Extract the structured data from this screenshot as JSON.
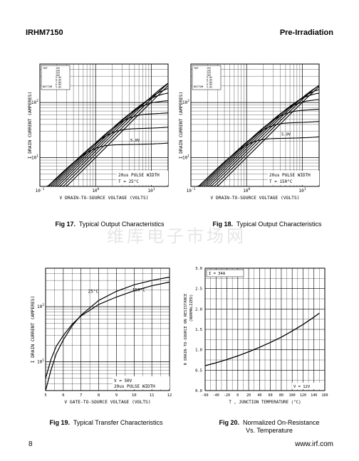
{
  "header": {
    "part": "IRHM7150",
    "section": "Pre-Irradiation"
  },
  "watermark": "维库电子市场网",
  "footer": {
    "page": "8",
    "url": "www.irf.com"
  },
  "charts": [
    {
      "id": "fig17",
      "caption_num": "Fig 17.",
      "caption_text": "Typical Output Characteristics",
      "ylabel": "I  DRAIN CURRENT (AMPERES)",
      "ysub": "D",
      "xlabel": "V   DRAIN-TO-SOURCE VOLTAGE (VOLTS)",
      "xsub": "DS,",
      "xticks": [
        "10-1",
        "100",
        "101"
      ],
      "yticks": [
        "102",
        "101"
      ],
      "legend_top": "TOP",
      "legend_bottom": "BOTTOM",
      "legend_vgs": [
        "15V",
        "14V",
        "12V",
        "10V",
        "9.0V",
        "8.0V",
        "7.0V",
        "6.0V",
        "5.0V"
      ],
      "lowest_curve_label": "5.0V",
      "note1": "20us PULSE WIDTH",
      "note2": "T  = 25°C",
      "note2_sub": "C"
    },
    {
      "id": "fig18",
      "caption_num": "Fig 18.",
      "caption_text": "Typical Output Characteristics",
      "ylabel": "I  DRAIN CURRENT (AMPERES)",
      "ysub": "D",
      "xlabel": "V   DRAIN-TO-SOURCE VOLTAGE (VOLTS)",
      "xsub": "DS,",
      "xticks": [
        "10-1",
        "100",
        "101"
      ],
      "yticks": [
        "102",
        "101"
      ],
      "legend_top": "TOP",
      "legend_bottom": "BOTTOM",
      "legend_vgs": [
        "15V",
        "14V",
        "12V",
        "10V",
        "9.0V",
        "8.0V",
        "7.0V",
        "6.0V",
        "5.0V"
      ],
      "lowest_curve_label": "5.0V",
      "note1": "20us PULSE WIDTH",
      "note2": "T  = 150°C",
      "note2_sub": "C"
    },
    {
      "id": "fig19",
      "caption_num": "Fig 19.",
      "caption_text": "Typical Transfer Characteristics",
      "ylabel": "I  DRAIN CURRENT (AMPERES)",
      "ysub": "D",
      "xlabel": "V    GATE-TO-SOURCE VOLTAGE (VOLTS)",
      "xsub": "GS,",
      "xticks": [
        "5",
        "6",
        "7",
        "8",
        "9",
        "10",
        "11",
        "12"
      ],
      "yticks": [
        "102",
        "101"
      ],
      "series_labels": [
        "25°C",
        "150°C"
      ],
      "note1": "V   = 50V",
      "note1_sub": "DS",
      "note2": "20us PULSE WIDTH"
    },
    {
      "id": "fig20",
      "caption_num": "Fig 20.",
      "caption_text": "Normalized On-Resistance",
      "caption_text2": "Vs. Temperature",
      "ylabel": "R      DRAIN-TO-SOURCE ON RESISTANCE",
      "ysub": "DS (on),",
      "ylabel2": "(NORMALIZED)",
      "xlabel": "T , JUNCTION TEMPERATURE  (°C)",
      "xticks": [
        "-60",
        "-40",
        "-20",
        "0",
        "20",
        "40",
        "60",
        "80",
        "100",
        "120",
        "140",
        "160"
      ],
      "yticks": [
        "3.0",
        "2.5",
        "2.0",
        "1.5",
        "1.0",
        "0.5",
        "0.0"
      ],
      "id_label": "I  = 34A",
      "vgs_label": "V   = 12V"
    }
  ],
  "chart_data": [
    {
      "type": "line",
      "title": "Typical Output Characteristics",
      "x_scale": "log",
      "y_scale": "log",
      "xlim": [
        0.1,
        20
      ],
      "ylim": [
        3,
        500
      ],
      "series": [
        {
          "name": "15V",
          "saturation": 420
        },
        {
          "name": "14V",
          "saturation": 380
        },
        {
          "name": "12V",
          "saturation": 290
        },
        {
          "name": "10V",
          "saturation": 180
        },
        {
          "name": "9.0V",
          "saturation": 140
        },
        {
          "name": "8.0V",
          "saturation": 100
        },
        {
          "name": "7.0V",
          "saturation": 60
        },
        {
          "name": "6.0V",
          "saturation": 33
        },
        {
          "name": "5.0V",
          "saturation": 17
        }
      ]
    },
    {
      "type": "line",
      "title": "Typical Output Characteristics",
      "x_scale": "log",
      "y_scale": "log",
      "xlim": [
        0.1,
        20
      ],
      "ylim": [
        3,
        500
      ],
      "series": [
        {
          "name": "15V",
          "saturation": 330
        },
        {
          "name": "14V",
          "saturation": 290
        },
        {
          "name": "12V",
          "saturation": 230
        },
        {
          "name": "10V",
          "saturation": 170
        },
        {
          "name": "9.0V",
          "saturation": 140
        },
        {
          "name": "8.0V",
          "saturation": 105
        },
        {
          "name": "7.0V",
          "saturation": 70
        },
        {
          "name": "6.0V",
          "saturation": 42
        },
        {
          "name": "5.0V",
          "saturation": 22
        }
      ]
    },
    {
      "type": "line",
      "title": "Typical Transfer Characteristics",
      "y_scale": "log",
      "xlim": [
        5,
        12
      ],
      "ylim": [
        3,
        500
      ],
      "series": [
        {
          "name": "25°C",
          "x": [
            5,
            5.3,
            5.6,
            6,
            6.5,
            7,
            8,
            9,
            10,
            11,
            12
          ],
          "y": [
            3,
            7,
            14,
            25,
            45,
            70,
            130,
            190,
            250,
            300,
            345
          ]
        },
        {
          "name": "150°C",
          "x": [
            5,
            5.3,
            5.6,
            6,
            6.5,
            7,
            8,
            9,
            10,
            11,
            12
          ],
          "y": [
            5,
            11,
            19,
            30,
            48,
            68,
            110,
            150,
            195,
            240,
            280
          ]
        }
      ]
    },
    {
      "type": "line",
      "title": "Normalized On-Resistance Vs. Temperature",
      "xlim": [
        -60,
        160
      ],
      "ylim": [
        0,
        3.0
      ],
      "series": [
        {
          "x": [
            -60,
            -40,
            -20,
            0,
            20,
            40,
            60,
            80,
            100,
            120,
            140,
            150
          ],
          "y": [
            0.61,
            0.68,
            0.76,
            0.85,
            0.95,
            1.06,
            1.18,
            1.31,
            1.46,
            1.62,
            1.8,
            1.9
          ]
        }
      ]
    }
  ]
}
